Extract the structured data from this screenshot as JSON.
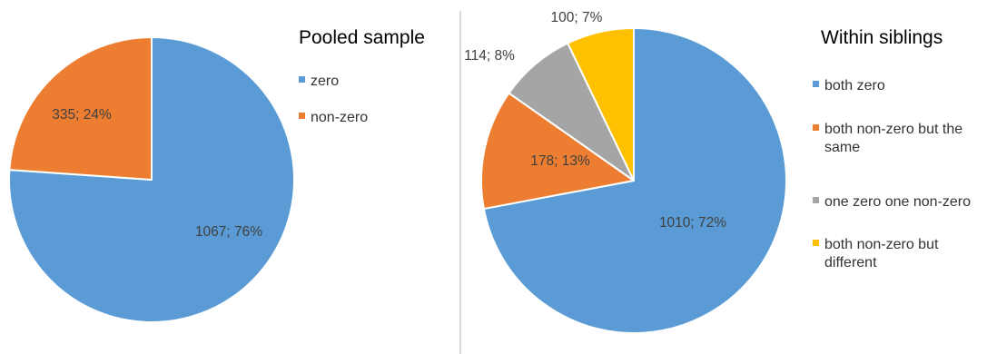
{
  "colors": {
    "blue": "#5b9bd5",
    "orange": "#ed7d31",
    "gray": "#a5a5a5",
    "yellow": "#ffc000"
  },
  "chart_data": [
    {
      "type": "pie",
      "title": "Pooled sample",
      "legend_placement": "right",
      "slices": [
        {
          "name": "zero",
          "value": 1067,
          "percent": 76,
          "label": "1067; 76%",
          "color": "#5b9bd5"
        },
        {
          "name": "non-zero",
          "value": 335,
          "percent": 24,
          "label": "335; 24%",
          "color": "#ed7d31"
        }
      ],
      "legend": [
        {
          "text": [
            "zero"
          ],
          "color": "#5b9bd5"
        },
        {
          "text": [
            "non-zero"
          ],
          "color": "#ed7d31"
        }
      ]
    },
    {
      "type": "pie",
      "title": "Within siblings",
      "legend_placement": "right",
      "slices": [
        {
          "name": "both zero",
          "value": 1010,
          "percent": 72,
          "label": "1010; 72%",
          "color": "#5b9bd5"
        },
        {
          "name": "both non-zero but the same",
          "value": 178,
          "percent": 13,
          "label": "178; 13%",
          "color": "#ed7d31"
        },
        {
          "name": "one zero one non-zero",
          "value": 114,
          "percent": 8,
          "label": "114; 8%",
          "color": "#a5a5a5"
        },
        {
          "name": "both non-zero but different",
          "value": 100,
          "percent": 7,
          "label": "100; 7%",
          "color": "#ffc000"
        }
      ],
      "legend": [
        {
          "text": [
            "both zero"
          ],
          "color": "#5b9bd5"
        },
        {
          "text": [
            "both non-zero but the",
            "same"
          ],
          "color": "#ed7d31"
        },
        {
          "text": [
            "one zero one non-zero"
          ],
          "color": "#a5a5a5"
        },
        {
          "text": [
            "both non-zero but",
            "different"
          ],
          "color": "#ffc000"
        }
      ]
    }
  ]
}
